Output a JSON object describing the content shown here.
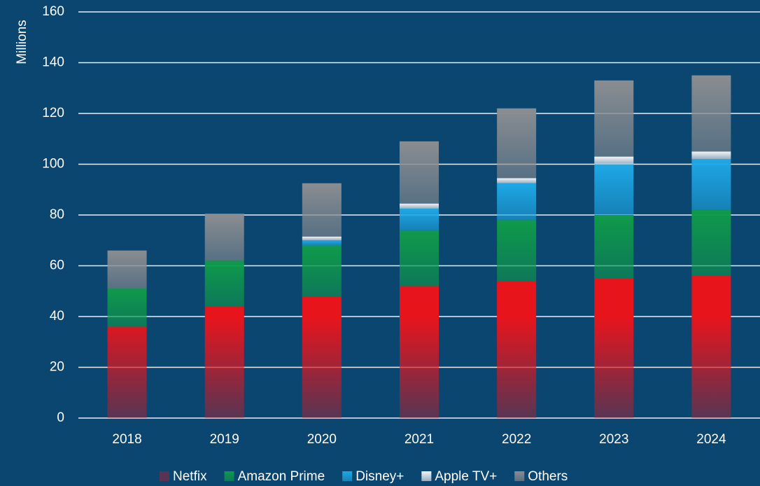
{
  "chart_data": {
    "type": "stacked-bar",
    "y_label": "Millions",
    "categories": [
      "2018",
      "2019",
      "2020",
      "2021",
      "2022",
      "2023",
      "2024"
    ],
    "series": [
      {
        "name": "Netfix",
        "color": "#e8141c",
        "values": [
          36,
          44,
          48,
          52,
          54,
          55,
          56
        ]
      },
      {
        "name": "Amazon Prime",
        "color": "#0f9a4a",
        "values": [
          15,
          18,
          20,
          22,
          24,
          25,
          26
        ]
      },
      {
        "name": "Disney+",
        "color": "#1ea8e6",
        "values": [
          0,
          0,
          2,
          8.5,
          14.5,
          20,
          20
        ]
      },
      {
        "name": "Apple TV+",
        "color": "#f2f4f7",
        "values": [
          0,
          0,
          1.5,
          2,
          2,
          3,
          3
        ]
      },
      {
        "name": "Others",
        "color": "#8a8d91",
        "values": [
          15,
          18.5,
          21,
          24.5,
          27.5,
          30,
          30
        ]
      }
    ],
    "ylim": [
      0,
      160
    ],
    "yticks": [
      0,
      20,
      40,
      60,
      80,
      100,
      120,
      140,
      160
    ],
    "grid": true
  }
}
